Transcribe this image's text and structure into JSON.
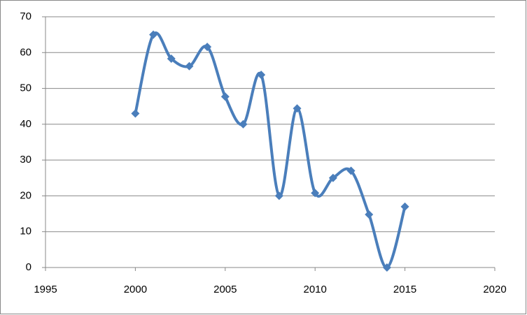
{
  "chart_data": {
    "type": "scatter-smooth",
    "x": [
      2000,
      2001,
      2002,
      2003,
      2004,
      2005,
      2006,
      2007,
      2008,
      2009,
      2010,
      2011,
      2012,
      2013,
      2014,
      2015
    ],
    "series": [
      {
        "color": "#4a7ebb",
        "values": [
          43,
          65,
          58.3,
          56.2,
          61.6,
          47.7,
          40,
          53.8,
          20,
          44.4,
          20.8,
          25,
          27,
          14.8,
          0,
          17
        ]
      }
    ],
    "xlim": [
      1995,
      2020
    ],
    "xticks": [
      1995,
      2000,
      2005,
      2010,
      2015,
      2020
    ],
    "ylim": [
      0,
      70
    ],
    "yticks": [
      0,
      10,
      20,
      30,
      40,
      50,
      60,
      70
    ],
    "grid": true
  }
}
